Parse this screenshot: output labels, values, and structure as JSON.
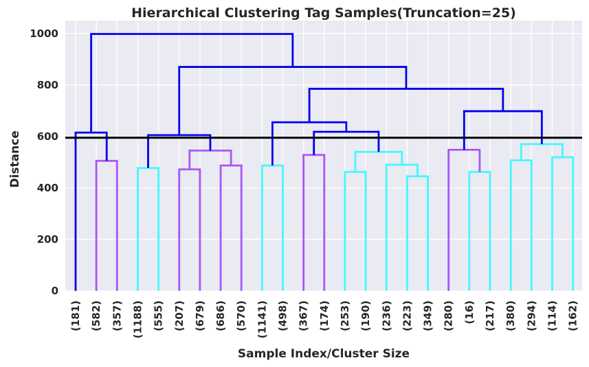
{
  "chart_data": {
    "type": "dendrogram",
    "title": "Hierarchical Clustering Tag Samples(Truncation=25)",
    "xlabel": "Sample Index/Cluster Size",
    "ylabel": "Distance",
    "ylim": [
      0,
      1050
    ],
    "yticks": [
      0,
      200,
      400,
      600,
      800,
      1000
    ],
    "grid": true,
    "background": "#EAEAF2",
    "threshold": 595,
    "threshold_color": "#000000",
    "colors": {
      "above": "#0000EE",
      "purple": "#A855F7",
      "cyan": "#44F8FF"
    },
    "leaves": [
      "(181)",
      "(582)",
      "(357)",
      "(1188)",
      "(555)",
      "(207)",
      "(679)",
      "(686)",
      "(570)",
      "(1141)",
      "(498)",
      "(367)",
      "(174)",
      "(253)",
      "(190)",
      "(236)",
      "(223)",
      "(349)",
      "(280)",
      "(16)",
      "(217)",
      "(380)",
      "(294)",
      "(114)",
      "(162)"
    ],
    "merges": [
      {
        "a": 1,
        "b": 2,
        "h": 505,
        "color": "purple"
      },
      {
        "a": 3,
        "b": 4,
        "h": 477,
        "color": "cyan"
      },
      {
        "a": 5,
        "b": 6,
        "h": 472,
        "color": "purple"
      },
      {
        "a": 7,
        "b": 8,
        "h": 487,
        "color": "purple"
      },
      {
        "a": 27,
        "b": 28,
        "h": 545,
        "color": "purple"
      },
      {
        "a": 9,
        "b": 10,
        "h": 487,
        "color": "cyan"
      },
      {
        "a": 11,
        "b": 12,
        "h": 528,
        "color": "purple"
      },
      {
        "a": 13,
        "b": 14,
        "h": 462,
        "color": "cyan"
      },
      {
        "a": 16,
        "b": 17,
        "h": 445,
        "color": "cyan"
      },
      {
        "a": 15,
        "b": 33,
        "h": 490,
        "color": "cyan"
      },
      {
        "a": 32,
        "b": 34,
        "h": 540,
        "color": "cyan"
      },
      {
        "a": 19,
        "b": 20,
        "h": 462,
        "color": "cyan"
      },
      {
        "a": 18,
        "b": 36,
        "h": 548,
        "color": "purple"
      },
      {
        "a": 21,
        "b": 22,
        "h": 507,
        "color": "cyan"
      },
      {
        "a": 23,
        "b": 24,
        "h": 519,
        "color": "cyan"
      },
      {
        "a": 38,
        "b": 39,
        "h": 570,
        "color": "cyan"
      },
      {
        "a": 0,
        "b": 25,
        "h": 615,
        "color": "above"
      },
      {
        "a": 26,
        "b": 29,
        "h": 605,
        "color": "above"
      },
      {
        "a": 31,
        "b": 35,
        "h": 618,
        "color": "above"
      },
      {
        "a": 30,
        "b": 43,
        "h": 655,
        "color": "above"
      },
      {
        "a": 37,
        "b": 40,
        "h": 698,
        "color": "above"
      },
      {
        "a": 44,
        "b": 45,
        "h": 785,
        "color": "above"
      },
      {
        "a": 42,
        "b": 46,
        "h": 870,
        "color": "above"
      },
      {
        "a": 41,
        "b": 47,
        "h": 998,
        "color": "above"
      }
    ]
  }
}
